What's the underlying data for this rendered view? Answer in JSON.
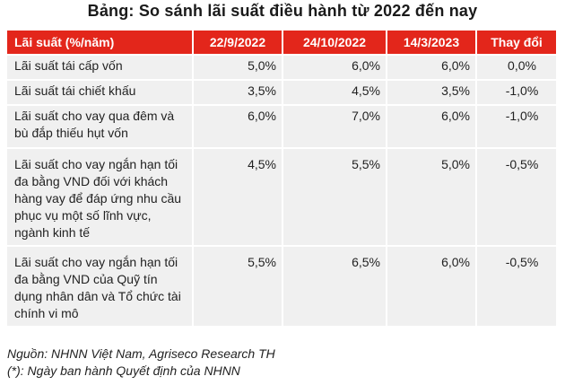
{
  "title": "Bảng: So sánh lãi suất điều hành từ 2022 đến nay",
  "table": {
    "headers": [
      "Lãi suất (%/năm)",
      "22/9/2022",
      "24/10/2022",
      "14/3/2023",
      "Thay đổi"
    ],
    "rows": [
      [
        "Lãi suất tái cấp vốn",
        "5,0%",
        "6,0%",
        "6,0%",
        "0,0%"
      ],
      [
        "Lãi suất tái chiết khấu",
        "3,5%",
        "4,5%",
        "3,5%",
        "-1,0%"
      ],
      [
        "Lãi suất cho vay qua đêm và bù đắp thiếu hụt vốn",
        "6,0%",
        "7,0%",
        "6,0%",
        "-1,0%"
      ],
      [
        "Lãi suất cho vay ngắn hạn tối đa bằng VND đối với khách hàng vay để đáp ứng nhu cầu phục vụ một số lĩnh vực, ngành kinh tế",
        "4,5%",
        "5,5%",
        "5,0%",
        "-0,5%"
      ],
      [
        "Lãi suất cho vay ngắn hạn tối đa bằng VND của Quỹ tín dụng nhân dân và Tổ chức tài chính vi mô",
        "5,5%",
        "6,5%",
        "6,0%",
        "-0,5%"
      ]
    ]
  },
  "footnotes": {
    "source": "Nguồn: NHNN Việt Nam, Agriseco Research TH",
    "note": "(*): Ngày ban hành Quyết định của NHNN"
  },
  "colors": {
    "header_bg": "#e3261b",
    "cell_bg": "#f0f0f0"
  }
}
